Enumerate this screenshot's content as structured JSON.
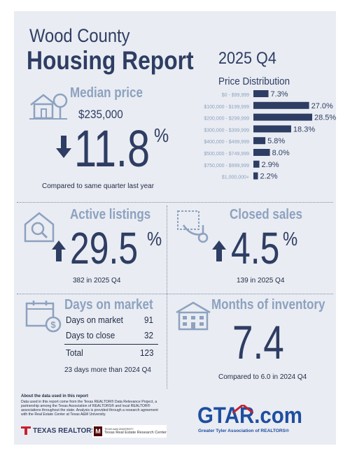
{
  "header": {
    "title_line1": "Wood County",
    "title_line2": "Housing Report",
    "quarter": "2025 Q4"
  },
  "median_price": {
    "title": "Median price",
    "value": "$235,000",
    "change_value": "11.8",
    "change_unit": "%",
    "direction": "down",
    "caption": "Compared to same quarter last year"
  },
  "chart_data": {
    "type": "bar",
    "orientation": "horizontal",
    "title": "Price Distribution",
    "categories": [
      "$0 - $99,999",
      "$100,000 - $199,999",
      "$200,000 - $299,999",
      "$300,000 - $399,999",
      "$400,000 - $499,999",
      "$500,000 - $749,999",
      "$750,000 - $999,999",
      "$1,000,000+"
    ],
    "values": [
      7.3,
      27.0,
      28.5,
      18.3,
      5.8,
      8.0,
      2.9,
      2.2
    ],
    "labels": [
      "7.3%",
      "27.0%",
      "28.5%",
      "18.3%",
      "5.8%",
      "8.0%",
      "2.9%",
      "2.2%"
    ],
    "color": "#2e3d63"
  },
  "active_listings": {
    "title": "Active listings",
    "change_value": "29.5",
    "change_unit": "%",
    "direction": "up",
    "caption": "382 in 2025 Q4"
  },
  "closed_sales": {
    "title": "Closed sales",
    "change_value": "4.5",
    "change_unit": "%",
    "direction": "up",
    "caption": "139 in 2025 Q4"
  },
  "days_on_market": {
    "title": "Days on market",
    "rows": [
      {
        "label": "Days on market",
        "value": "91"
      },
      {
        "label": "Days to close",
        "value": "32"
      }
    ],
    "total_label": "Total",
    "total_value": "123",
    "caption": "23 days more than 2024 Q4"
  },
  "months_inventory": {
    "title": "Months of inventory",
    "value": "7.4",
    "caption": "Compared to 6.0 in 2024 Q4"
  },
  "footer": {
    "about_title": "About the data used in this report",
    "about_text_1": "Data used in this report come from the Texas REALTOR® Data Relevance Project, a",
    "about_text_2": "partnership among the Texas Association of REALTORS® and local REALTOR®",
    "about_text_3": "associations throughout the state. Analysis is provided through a research agreement",
    "about_text_4": "with the Real Estate Center at Texas A&M University.",
    "texas_realtors": "TEXAS REALTORS",
    "tamu_small": "TEXAS A&M UNIVERSITY",
    "tamu_center": "Texas Real Estate Research Center",
    "gtar_logo": "GTAR.com",
    "gtar_tagline": "Greater Tyler Association of REALTORS®"
  },
  "colors": {
    "navy": "#2e3d63",
    "accent": "#8da2c0",
    "background": "#e9ecf2",
    "logo_red": "#c8202f",
    "logo_blue": "#1e4fa0"
  }
}
